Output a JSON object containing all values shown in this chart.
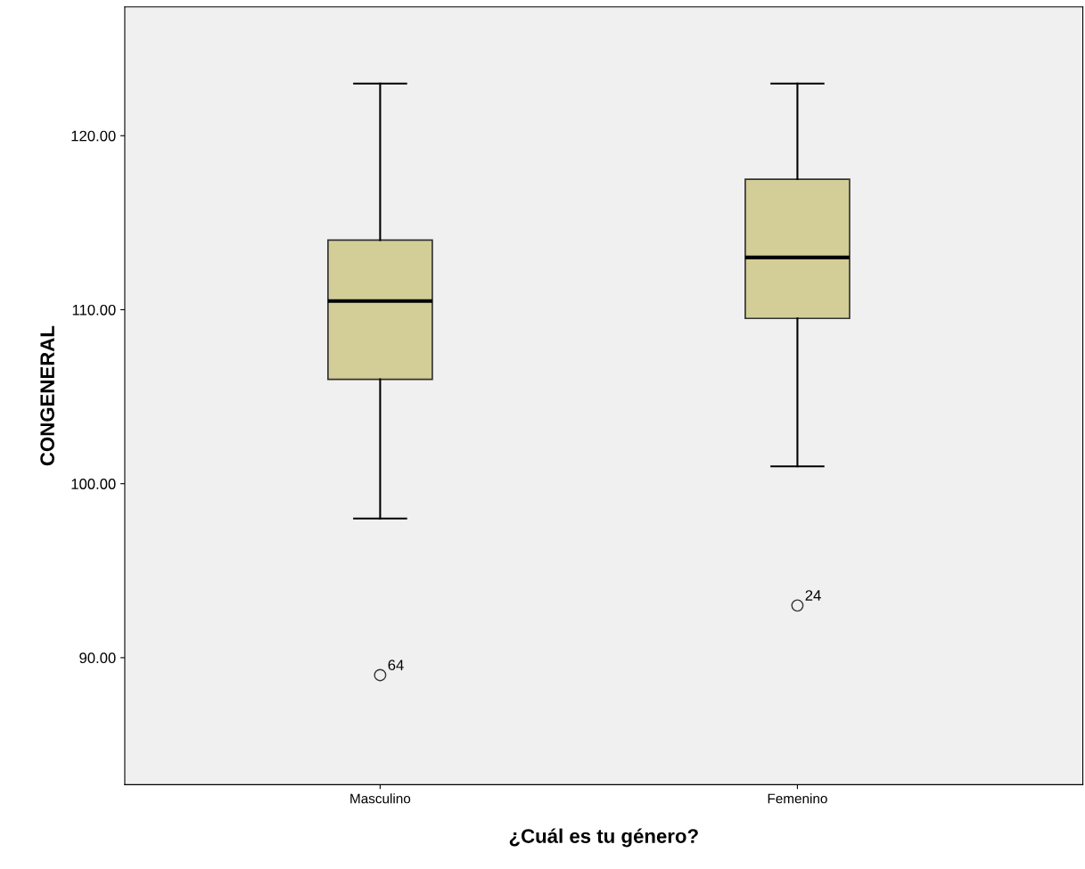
{
  "chart_data": {
    "type": "box",
    "xlabel": "¿Cuál es tu género?",
    "ylabel": "CONGENERAL",
    "categories": [
      "Masculino",
      "Femenino"
    ],
    "boxes": [
      {
        "low": 98,
        "q1": 106,
        "median": 110.5,
        "q3": 114,
        "high": 123,
        "outliers": [
          89
        ]
      },
      {
        "low": 101,
        "q1": 109.5,
        "median": 113,
        "q3": 117.5,
        "high": 123,
        "outliers": [
          93
        ]
      }
    ],
    "color": "#d3ce97",
    "ylim": [
      82.7,
      127.4
    ],
    "yticks": [
      {
        "value": 90,
        "label": "90.00"
      },
      {
        "value": 100,
        "label": "100.00"
      },
      {
        "value": 110,
        "label": "110.00"
      },
      {
        "value": 120,
        "label": "120.00"
      }
    ],
    "annotations": [
      "64",
      "24"
    ],
    "grid": false,
    "legend": false
  }
}
